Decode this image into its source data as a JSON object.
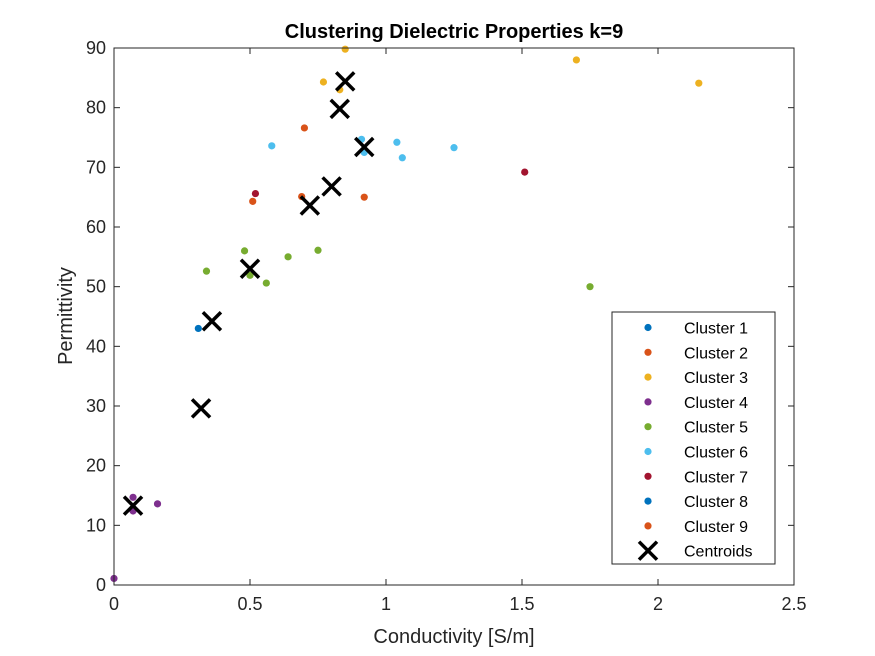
{
  "chart_data": {
    "type": "scatter",
    "title": "Clustering Dielectric Properties k=9",
    "xlabel": "Conductivity [S/m]",
    "ylabel": "Permittivity",
    "xlim": [
      0,
      2.5
    ],
    "ylim": [
      0,
      90
    ],
    "xticks": [
      0,
      0.5,
      1,
      1.5,
      2,
      2.5
    ],
    "xtick_labels": [
      "0",
      "0.5",
      "1",
      "1.5",
      "2",
      "2.5"
    ],
    "yticks": [
      0,
      10,
      20,
      30,
      40,
      50,
      60,
      70,
      80,
      90
    ],
    "ytick_labels": [
      "0",
      "10",
      "20",
      "30",
      "40",
      "50",
      "60",
      "70",
      "80",
      "90"
    ],
    "grid": false,
    "legend_position": "bottom-right",
    "series": [
      {
        "name": "Cluster 1",
        "color": "#0072BD",
        "marker": "dot",
        "points": [
          [
            0.31,
            43.0
          ]
        ]
      },
      {
        "name": "Cluster 2",
        "color": "#D95319",
        "marker": "dot",
        "points": [
          [
            0.7,
            76.6
          ],
          [
            0.51,
            64.3
          ],
          [
            0.69,
            65.1
          ],
          [
            0.92,
            65.0
          ]
        ]
      },
      {
        "name": "Cluster 3",
        "color": "#EDB120",
        "marker": "dot",
        "points": [
          [
            0.85,
            89.8
          ],
          [
            0.77,
            84.3
          ],
          [
            0.83,
            83.0
          ],
          [
            1.7,
            88.0
          ],
          [
            2.15,
            84.1
          ]
        ]
      },
      {
        "name": "Cluster 4",
        "color": "#7E2F8E",
        "marker": "dot",
        "points": [
          [
            0.0,
            1.1
          ],
          [
            0.07,
            14.7
          ],
          [
            0.07,
            12.4
          ],
          [
            0.16,
            13.6
          ]
        ]
      },
      {
        "name": "Cluster 5",
        "color": "#77AC30",
        "marker": "dot",
        "points": [
          [
            0.34,
            52.6
          ],
          [
            0.48,
            56.0
          ],
          [
            0.5,
            51.9
          ],
          [
            0.56,
            50.6
          ],
          [
            0.64,
            55.0
          ],
          [
            0.75,
            56.1
          ],
          [
            1.75,
            50.0
          ]
        ]
      },
      {
        "name": "Cluster 6",
        "color": "#4DBEEE",
        "marker": "dot",
        "points": [
          [
            0.58,
            73.6
          ],
          [
            0.91,
            74.7
          ],
          [
            0.92,
            72.5
          ],
          [
            1.04,
            74.2
          ],
          [
            1.06,
            71.6
          ],
          [
            1.25,
            73.3
          ]
        ]
      },
      {
        "name": "Cluster 7",
        "color": "#A2142F",
        "marker": "dot",
        "points": [
          [
            0.52,
            65.6
          ],
          [
            1.51,
            69.2
          ]
        ]
      },
      {
        "name": "Cluster 8",
        "color": "#0072BD",
        "marker": "dot",
        "points": []
      },
      {
        "name": "Cluster 9",
        "color": "#D95319",
        "marker": "dot",
        "points": []
      },
      {
        "name": "Centroids",
        "color": "#000000",
        "marker": "x",
        "points": [
          [
            0.07,
            13.3
          ],
          [
            0.32,
            29.6
          ],
          [
            0.36,
            44.2
          ],
          [
            0.5,
            53.0
          ],
          [
            0.72,
            63.6
          ],
          [
            0.8,
            66.8
          ],
          [
            0.83,
            79.8
          ],
          [
            0.85,
            84.4
          ],
          [
            0.92,
            73.4
          ]
        ]
      }
    ]
  }
}
